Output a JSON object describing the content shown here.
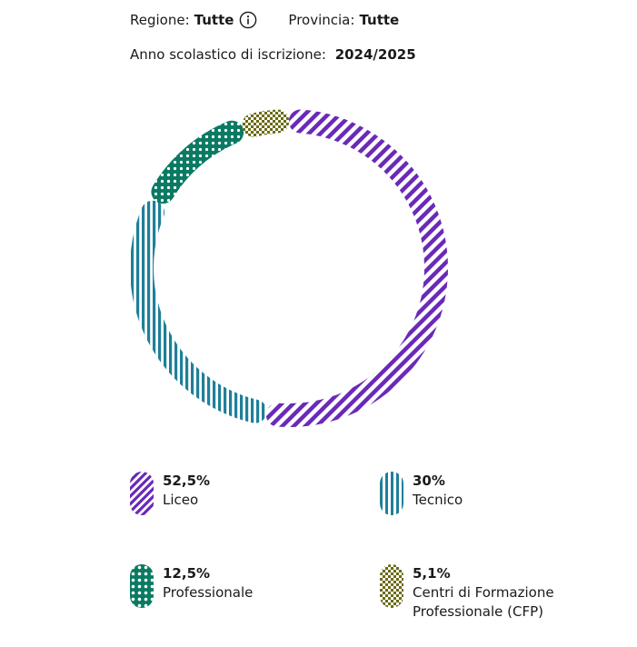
{
  "filters": {
    "region_label": "Regione:",
    "region_value": "Tutte",
    "province_label": "Provincia:",
    "province_value": "Tutte",
    "info_icon": "info-icon"
  },
  "school_year": {
    "label": "Anno scolastico di iscrizione:",
    "value": "2024/2025"
  },
  "colors": {
    "liceo": "#6a2ab8",
    "tecnico": "#1f7f99",
    "professionale": "#0a7a63",
    "cfp": "#6b6a12"
  },
  "chart_data": {
    "type": "pie",
    "variant": "donut",
    "series": [
      {
        "name": "Liceo",
        "value": 52.5,
        "value_label": "52,5%",
        "pattern": "diagonal-stripes",
        "color": "#6a2ab8"
      },
      {
        "name": "Tecnico",
        "value": 30,
        "value_label": "30%",
        "pattern": "vertical-stripes",
        "color": "#1f7f99"
      },
      {
        "name": "Professionale",
        "value": 12.5,
        "value_label": "12,5%",
        "pattern": "dots",
        "color": "#0a7a63"
      },
      {
        "name": "Centri di Formazione Professionale (CFP)",
        "value": 5.1,
        "value_label": "5,1%",
        "pattern": "checker",
        "color": "#6b6a12"
      }
    ],
    "legend_position": "bottom"
  }
}
